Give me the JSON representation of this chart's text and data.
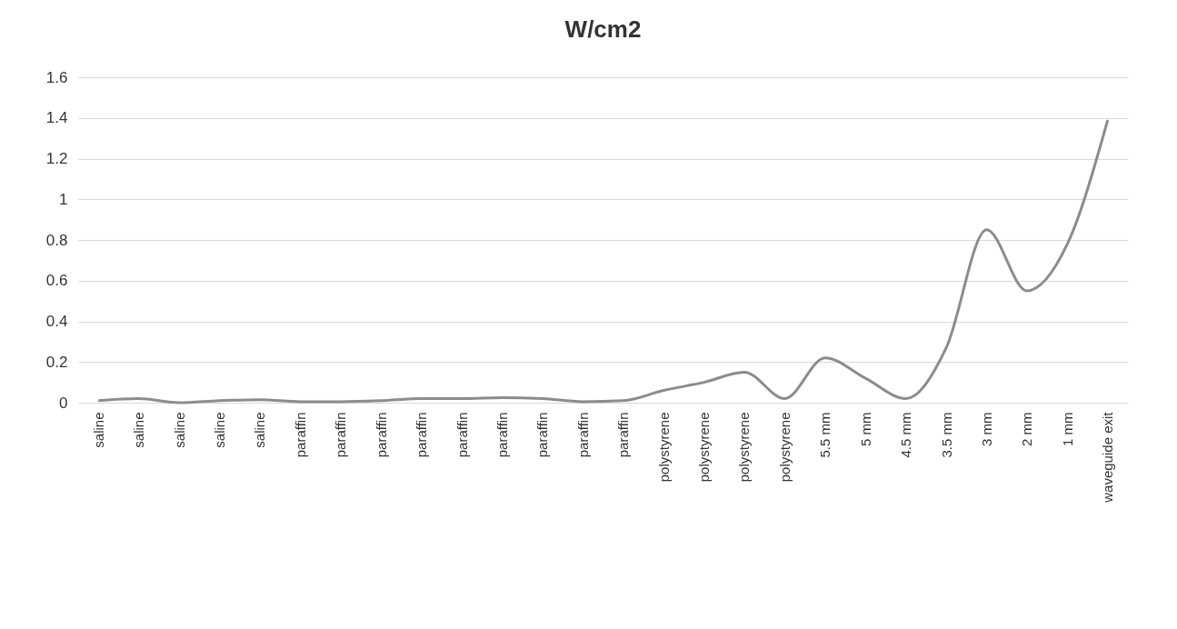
{
  "chart_data": {
    "type": "line",
    "title": "W/cm2",
    "categories": [
      "saline",
      "saline",
      "saline",
      "saline",
      "saline",
      "paraffin",
      "paraffin",
      "paraffin",
      "paraffin",
      "paraffin",
      "paraffin",
      "paraffin",
      "paraffin",
      "paraffin",
      "polystyrene",
      "polystyrene",
      "polystyrene",
      "polystyrene",
      "5.5 mm",
      "5 mm",
      "4.5 mm",
      "3.5 mm",
      "3 mm",
      "2 mm",
      "1 mm",
      "waveguide exit"
    ],
    "series": [
      {
        "color": "#8c8c8c",
        "values": [
          0.01,
          0.02,
          0,
          0.01,
          0.015,
          0.005,
          0.005,
          0.01,
          0.02,
          0.02,
          0.025,
          0.02,
          0.005,
          0.01,
          0.06,
          0.1,
          0.15,
          0.02,
          0.22,
          0.12,
          0.02,
          0.27,
          0.85,
          0.55,
          0.78,
          1.39
        ]
      }
    ],
    "ylim": [
      0,
      1.6
    ],
    "yticks": [
      0,
      {
        "value": 0.2,
        "label": "0.2"
      },
      {
        "value": 0.4,
        "label": "0.4"
      },
      {
        "value": 0.6,
        "label": "0.6"
      },
      {
        "value": 0.8,
        "label": "0.8"
      },
      1,
      {
        "value": 1.2,
        "label": "1.2"
      },
      {
        "value": 1.4,
        "label": "1.4"
      },
      {
        "value": 1.6,
        "label": "1.6"
      }
    ],
    "grid": "y",
    "marker": "none",
    "line_style": "solid"
  }
}
